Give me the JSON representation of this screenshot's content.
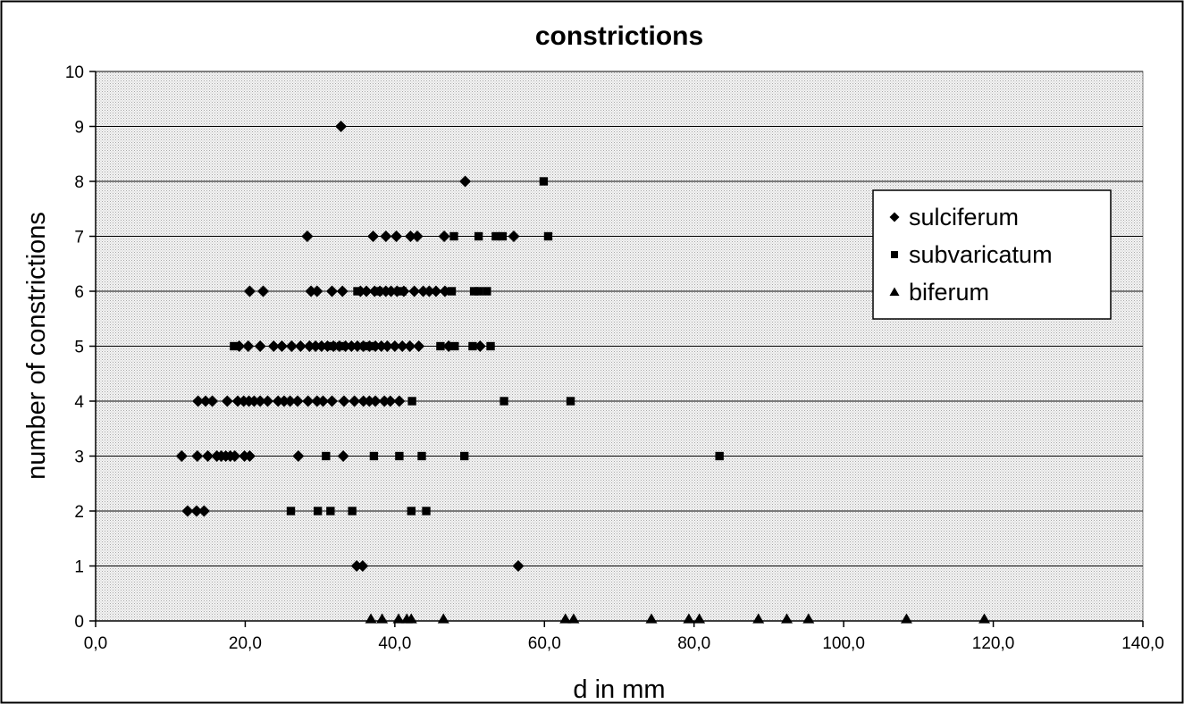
{
  "chart_data": {
    "type": "scatter",
    "title": "constrictions",
    "xlabel": "d in mm",
    "ylabel": "number of constrictions",
    "xlim": [
      0,
      140
    ],
    "ylim": [
      0,
      10
    ],
    "x_ticks": [
      "0,0",
      "20,0",
      "40,0",
      "60,0",
      "80,0",
      "100,0",
      "120,0",
      "140,0"
    ],
    "y_ticks": [
      "0",
      "1",
      "2",
      "3",
      "4",
      "5",
      "6",
      "7",
      "8",
      "9",
      "10"
    ],
    "grid": "horizontal major gridlines, dotted gray plot background",
    "legend_position": "right",
    "series": [
      {
        "name": "sulciferum",
        "marker": "diamond",
        "points": [
          [
            32.8,
            9
          ],
          [
            49.4,
            8
          ],
          [
            28.3,
            7
          ],
          [
            37.1,
            7
          ],
          [
            38.8,
            7
          ],
          [
            40.2,
            7
          ],
          [
            42.1,
            7
          ],
          [
            43.0,
            7
          ],
          [
            46.6,
            7
          ],
          [
            55.9,
            7
          ],
          [
            20.6,
            6
          ],
          [
            22.4,
            6
          ],
          [
            28.8,
            6
          ],
          [
            29.6,
            6
          ],
          [
            31.6,
            6
          ],
          [
            33.0,
            6
          ],
          [
            35.4,
            6
          ],
          [
            36.2,
            6
          ],
          [
            37.3,
            6
          ],
          [
            38.0,
            6
          ],
          [
            38.8,
            6
          ],
          [
            39.5,
            6
          ],
          [
            40.3,
            6
          ],
          [
            41.2,
            6
          ],
          [
            42.6,
            6
          ],
          [
            43.8,
            6
          ],
          [
            44.6,
            6
          ],
          [
            45.5,
            6
          ],
          [
            46.7,
            6
          ],
          [
            19.2,
            5
          ],
          [
            20.4,
            5
          ],
          [
            22.0,
            5
          ],
          [
            23.8,
            5
          ],
          [
            24.9,
            5
          ],
          [
            26.2,
            5
          ],
          [
            27.4,
            5
          ],
          [
            28.6,
            5
          ],
          [
            29.4,
            5
          ],
          [
            30.2,
            5
          ],
          [
            31.0,
            5
          ],
          [
            31.8,
            5
          ],
          [
            32.6,
            5
          ],
          [
            33.4,
            5
          ],
          [
            34.2,
            5
          ],
          [
            35.0,
            5
          ],
          [
            35.8,
            5
          ],
          [
            36.6,
            5
          ],
          [
            37.4,
            5
          ],
          [
            38.2,
            5
          ],
          [
            39.0,
            5
          ],
          [
            40.0,
            5
          ],
          [
            41.0,
            5
          ],
          [
            42.0,
            5
          ],
          [
            43.2,
            5
          ],
          [
            47.2,
            5
          ],
          [
            51.4,
            5
          ],
          [
            13.7,
            4
          ],
          [
            14.7,
            4
          ],
          [
            15.6,
            4
          ],
          [
            17.6,
            4
          ],
          [
            19.0,
            4
          ],
          [
            19.8,
            4
          ],
          [
            20.5,
            4
          ],
          [
            21.2,
            4
          ],
          [
            22.0,
            4
          ],
          [
            23.0,
            4
          ],
          [
            24.4,
            4
          ],
          [
            25.2,
            4
          ],
          [
            26.0,
            4
          ],
          [
            27.0,
            4
          ],
          [
            28.4,
            4
          ],
          [
            29.6,
            4
          ],
          [
            30.4,
            4
          ],
          [
            31.6,
            4
          ],
          [
            33.2,
            4
          ],
          [
            34.6,
            4
          ],
          [
            35.8,
            4
          ],
          [
            36.6,
            4
          ],
          [
            37.4,
            4
          ],
          [
            38.6,
            4
          ],
          [
            39.4,
            4
          ],
          [
            40.6,
            4
          ],
          [
            11.5,
            3
          ],
          [
            13.6,
            3
          ],
          [
            15.0,
            3
          ],
          [
            16.2,
            3
          ],
          [
            16.8,
            3
          ],
          [
            17.4,
            3
          ],
          [
            18.0,
            3
          ],
          [
            18.6,
            3
          ],
          [
            19.9,
            3
          ],
          [
            20.6,
            3
          ],
          [
            27.1,
            3
          ],
          [
            33.1,
            3
          ],
          [
            12.3,
            2
          ],
          [
            13.5,
            2
          ],
          [
            14.5,
            2
          ],
          [
            34.9,
            1
          ],
          [
            35.7,
            1
          ],
          [
            56.5,
            1
          ]
        ]
      },
      {
        "name": "subvaricatum",
        "marker": "square",
        "points": [
          [
            59.9,
            8
          ],
          [
            47.9,
            7
          ],
          [
            51.2,
            7
          ],
          [
            53.5,
            7
          ],
          [
            54.4,
            7
          ],
          [
            60.5,
            7
          ],
          [
            35.0,
            6
          ],
          [
            37.8,
            6
          ],
          [
            41.0,
            6
          ],
          [
            47.6,
            6
          ],
          [
            50.6,
            6
          ],
          [
            51.2,
            6
          ],
          [
            52.3,
            6
          ],
          [
            18.5,
            5
          ],
          [
            31.6,
            5
          ],
          [
            32.8,
            5
          ],
          [
            36.0,
            5
          ],
          [
            37.0,
            5
          ],
          [
            46.1,
            5
          ],
          [
            48.0,
            5
          ],
          [
            50.4,
            5
          ],
          [
            52.8,
            5
          ],
          [
            42.3,
            4
          ],
          [
            54.6,
            4
          ],
          [
            63.5,
            4
          ],
          [
            30.8,
            3
          ],
          [
            37.2,
            3
          ],
          [
            40.6,
            3
          ],
          [
            43.6,
            3
          ],
          [
            49.3,
            3
          ],
          [
            83.4,
            3
          ],
          [
            26.1,
            2
          ],
          [
            29.7,
            2
          ],
          [
            31.4,
            2
          ],
          [
            34.3,
            2
          ],
          [
            42.2,
            2
          ],
          [
            44.2,
            2
          ]
        ]
      },
      {
        "name": "biferum",
        "marker": "triangle",
        "points": [
          [
            36.8,
            0
          ],
          [
            38.3,
            0
          ],
          [
            40.5,
            0
          ],
          [
            41.6,
            0
          ],
          [
            42.2,
            0
          ],
          [
            46.5,
            0
          ],
          [
            62.8,
            0
          ],
          [
            63.9,
            0
          ],
          [
            74.3,
            0
          ],
          [
            79.3,
            0
          ],
          [
            80.7,
            0
          ],
          [
            88.6,
            0
          ],
          [
            92.4,
            0
          ],
          [
            95.3,
            0
          ],
          [
            108.4,
            0
          ],
          [
            118.8,
            0
          ]
        ]
      }
    ]
  }
}
